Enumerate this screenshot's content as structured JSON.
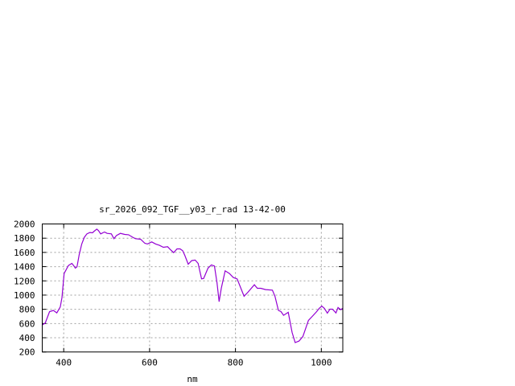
{
  "chart_data": {
    "type": "line",
    "title": "sr_2026_092_TGF__y03_r_rad 13-42-00",
    "xlabel": "nm",
    "ylabel": "",
    "xlim": [
      350,
      1050
    ],
    "ylim": [
      200,
      2000
    ],
    "xticks": [
      400,
      600,
      800,
      1000
    ],
    "yticks": [
      200,
      400,
      600,
      800,
      1000,
      1200,
      1400,
      1600,
      1800,
      2000
    ],
    "grid": true,
    "line_color": "#9400d3",
    "series": [
      {
        "x": [
          350,
          357,
          367,
          376,
          384,
          392,
          396,
          401,
          411,
          419,
          423,
          427,
          431,
          436,
          442,
          448,
          454,
          461,
          467,
          471,
          477,
          481,
          486,
          495,
          501,
          511,
          517,
          523,
          532,
          542,
          551,
          561,
          567,
          579,
          589,
          595,
          605,
          614,
          623,
          632,
          642,
          648,
          656,
          664,
          671,
          677,
          682,
          690,
          698,
          706,
          713,
          721,
          726,
          736,
          744,
          751,
          757,
          762,
          767,
          776,
          786,
          795,
          804,
          820,
          829,
          844,
          851,
          859,
          870,
          886,
          892,
          900,
          906,
          912,
          923,
          932,
          939,
          948,
          957,
          970,
          979,
          989,
          995,
          1001,
          1007,
          1014,
          1020,
          1026,
          1034,
          1039,
          1045,
          1050
        ],
        "y": [
          580,
          607,
          768,
          784,
          750,
          833,
          964,
          1303,
          1416,
          1446,
          1416,
          1379,
          1397,
          1567,
          1718,
          1812,
          1861,
          1880,
          1876,
          1898,
          1928,
          1906,
          1861,
          1887,
          1868,
          1861,
          1793,
          1838,
          1868,
          1853,
          1849,
          1812,
          1793,
          1785,
          1729,
          1718,
          1748,
          1718,
          1699,
          1672,
          1680,
          1642,
          1597,
          1650,
          1650,
          1623,
          1560,
          1435,
          1484,
          1492,
          1446,
          1228,
          1235,
          1379,
          1424,
          1409,
          1171,
          908,
          1096,
          1341,
          1303,
          1247,
          1228,
          983,
          1040,
          1145,
          1096,
          1096,
          1077,
          1070,
          983,
          784,
          768,
          716,
          757,
          475,
          332,
          354,
          418,
          644,
          701,
          768,
          814,
          844,
          814,
          746,
          802,
          802,
          750,
          825,
          795,
          814
        ]
      }
    ]
  }
}
